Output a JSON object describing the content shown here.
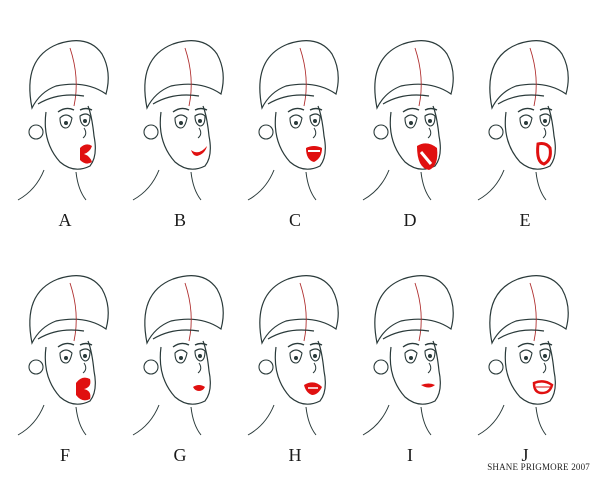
{
  "frames": [
    {
      "label": "A",
      "mouth": "pucker"
    },
    {
      "label": "B",
      "mouth": "smile"
    },
    {
      "label": "C",
      "mouth": "teeth-open"
    },
    {
      "label": "D",
      "mouth": "wide-open"
    },
    {
      "label": "E",
      "mouth": "oval-open"
    },
    {
      "label": "F",
      "mouth": "pucker-round"
    },
    {
      "label": "G",
      "mouth": "small-frown"
    },
    {
      "label": "H",
      "mouth": "teeth-smirk"
    },
    {
      "label": "I",
      "mouth": "flat-pout"
    },
    {
      "label": "J",
      "mouth": "grimace"
    }
  ],
  "credit": "SHANE PRIGMORE 2007",
  "colors": {
    "line": "#2a3a3a",
    "construction": "#b03030",
    "lips": "#e01010",
    "background": "#ffffff"
  }
}
